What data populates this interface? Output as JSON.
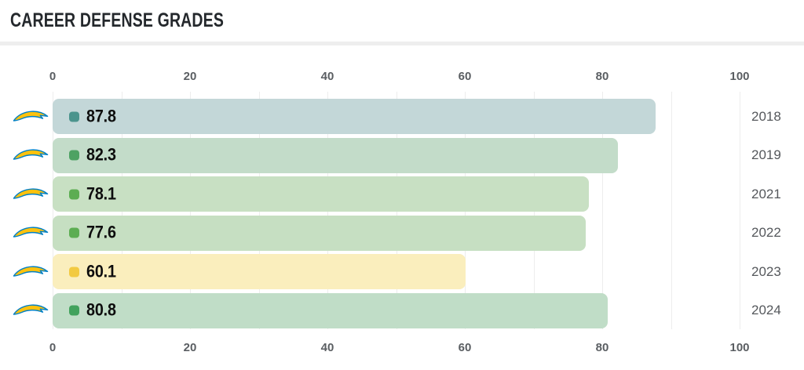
{
  "title": "CAREER DEFENSE GRADES",
  "chart_data": {
    "type": "bar",
    "orientation": "horizontal",
    "title": "CAREER DEFENSE GRADES",
    "categories": [
      "2018",
      "2019",
      "2021",
      "2022",
      "2023",
      "2024"
    ],
    "values": [
      87.8,
      82.3,
      78.1,
      77.6,
      60.1,
      80.8
    ],
    "value_labels": [
      "87.8",
      "82.3",
      "78.1",
      "77.6",
      "60.1",
      "80.8"
    ],
    "xlabel": "",
    "ylabel": "",
    "xlim": [
      0,
      100
    ],
    "major_ticks": [
      "0",
      "20",
      "40",
      "60",
      "80",
      "100"
    ],
    "grid_step": 10,
    "grid": true,
    "axis_label_positions": [
      "top",
      "bottom"
    ],
    "category_label_position": "right",
    "legend": false,
    "row_icon": "chargers-bolt-icon",
    "bar_colors": [
      "#c3d7d8",
      "#c3dcc9",
      "#c8e0c3",
      "#c6dfc2",
      "#faeebd",
      "#c0ddc7"
    ],
    "marker_colors": [
      "#4b948d",
      "#4ea263",
      "#5cad52",
      "#5cad52",
      "#f2ca41",
      "#42a25d"
    ]
  },
  "colors": {
    "background": "#ffffff",
    "title_text": "#24282c",
    "divider": "#eeeeee",
    "gridline": "#ededed",
    "axis_tick_text": "#5a5e62",
    "year_text": "#55585c",
    "value_text": "#0d0d0d",
    "bolt_gold": "#ffc20e",
    "bolt_blue": "#0080c6"
  }
}
